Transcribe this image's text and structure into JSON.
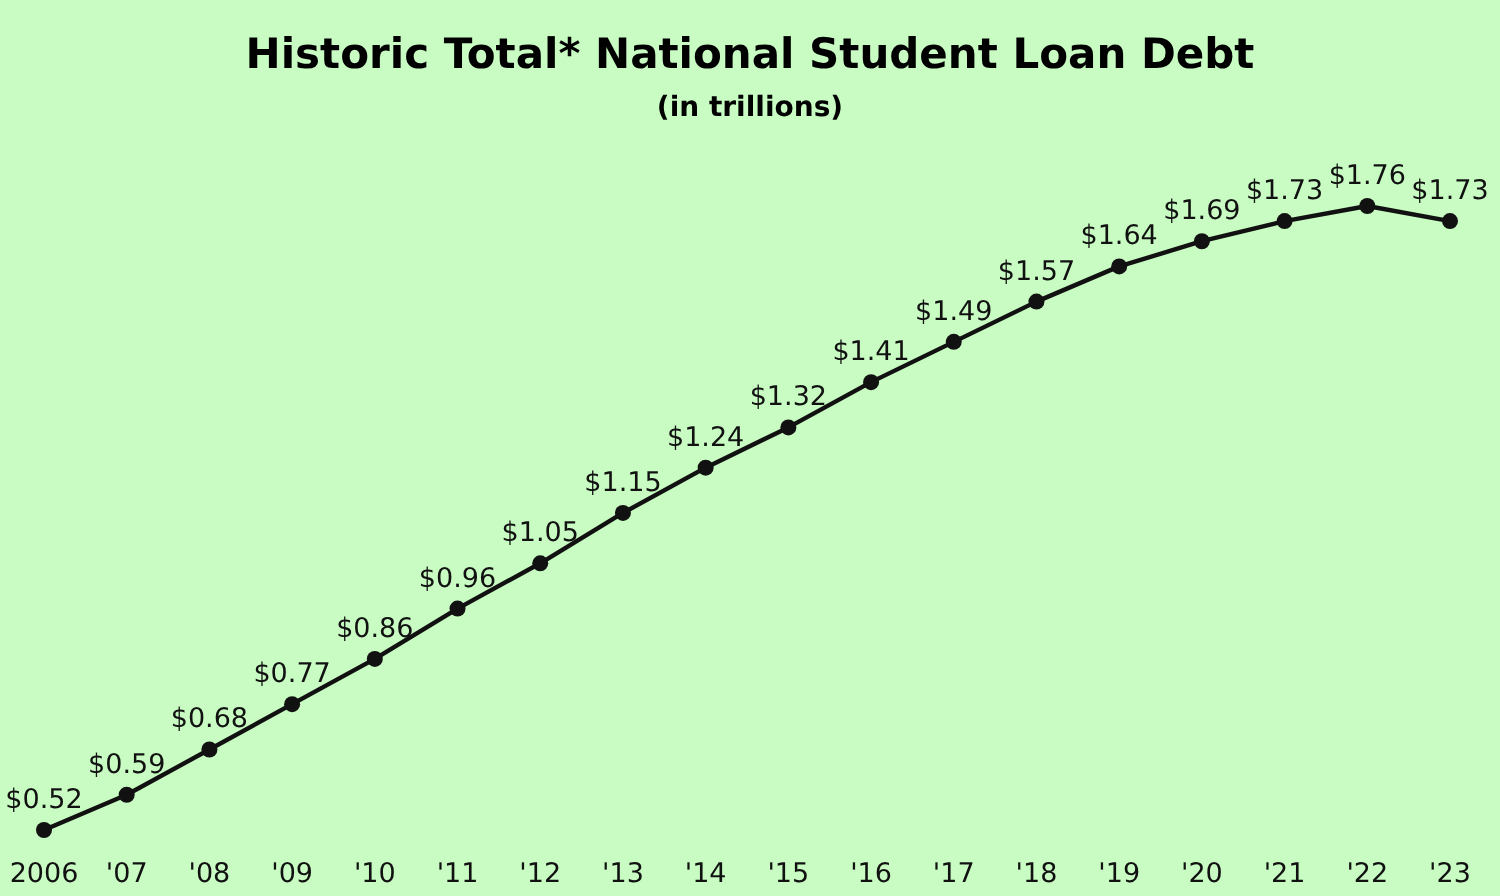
{
  "chart_data": {
    "type": "line",
    "title": "Historic Total* National Student Loan Debt",
    "subtitle": "(in trillions)",
    "categories": [
      "2006",
      "'07",
      "'08",
      "'09",
      "'10",
      "'11",
      "'12",
      "'13",
      "'14",
      "'15",
      "'16",
      "'17",
      "'18",
      "'19",
      "'20",
      "'21",
      "'22",
      "'23"
    ],
    "series": [
      {
        "color": "#111111",
        "values": [
          0.52,
          0.59,
          0.68,
          0.77,
          0.86,
          0.96,
          1.05,
          1.15,
          1.24,
          1.32,
          1.41,
          1.49,
          1.57,
          1.64,
          1.69,
          1.73,
          1.76,
          1.73
        ],
        "value_labels": [
          "$0.52",
          "$0.59",
          "$0.68",
          "$0.77",
          "$0.86",
          "$0.96",
          "$1.05",
          "$1.15",
          "$1.24",
          "$1.32",
          "$1.41",
          "$1.49",
          "$1.57",
          "$1.64",
          "$1.69",
          "$1.73",
          "$1.76",
          "$1.73"
        ]
      }
    ],
    "relative": false,
    "marker": "circle",
    "line_style": "solid",
    "grid": false
  }
}
